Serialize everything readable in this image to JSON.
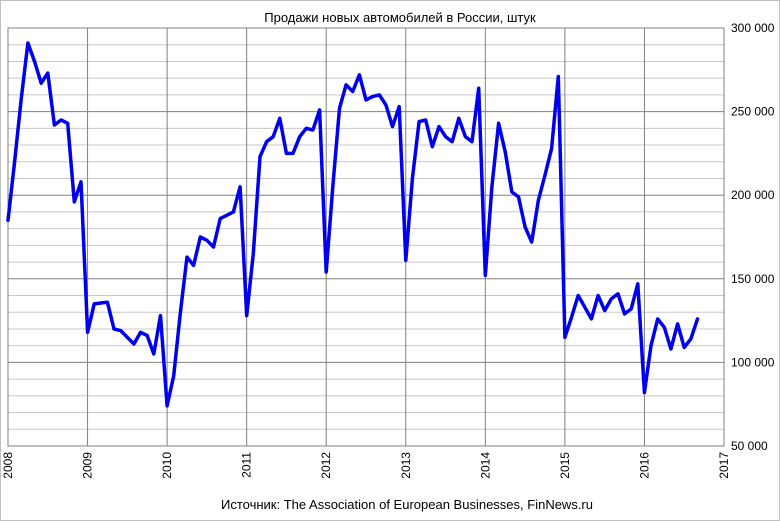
{
  "chart_data": {
    "type": "line",
    "title": "Продажи новых автомобилей в России, штук",
    "source": "Источник: The Association of European Businesses, FinNews.ru",
    "xlim": [
      2008,
      2017
    ],
    "ylim": [
      50000,
      300000
    ],
    "x_ticks": [
      "2008",
      "2009",
      "2010",
      "2011",
      "2012",
      "2013",
      "2014",
      "2015",
      "2016",
      "2017"
    ],
    "y_ticks": [
      "50 000",
      "100 000",
      "150 000",
      "200 000",
      "250 000",
      "300 000"
    ],
    "y_axis_position": "right",
    "grid": true,
    "line_color": "#0000ee",
    "series": [
      {
        "values": [
          [
            2008.0,
            185000
          ],
          [
            2008.083,
            220000
          ],
          [
            2008.167,
            258000
          ],
          [
            2008.25,
            291000
          ],
          [
            2008.333,
            280000
          ],
          [
            2008.417,
            267000
          ],
          [
            2008.5,
            273000
          ],
          [
            2008.583,
            242000
          ],
          [
            2008.667,
            245000
          ],
          [
            2008.75,
            243000
          ],
          [
            2008.833,
            196000
          ],
          [
            2008.917,
            208000
          ],
          [
            2009.0,
            118000
          ],
          [
            2009.083,
            135000
          ],
          [
            2009.167,
            135500
          ],
          [
            2009.25,
            136000
          ],
          [
            2009.333,
            120000
          ],
          [
            2009.417,
            119000
          ],
          [
            2009.5,
            115000
          ],
          [
            2009.583,
            111000
          ],
          [
            2009.667,
            118000
          ],
          [
            2009.75,
            116000
          ],
          [
            2009.833,
            105000
          ],
          [
            2009.917,
            128000
          ],
          [
            2010.0,
            74000
          ],
          [
            2010.083,
            92000
          ],
          [
            2010.167,
            130000
          ],
          [
            2010.25,
            163000
          ],
          [
            2010.333,
            158000
          ],
          [
            2010.417,
            175000
          ],
          [
            2010.5,
            173000
          ],
          [
            2010.583,
            169000
          ],
          [
            2010.667,
            186000
          ],
          [
            2010.75,
            188000
          ],
          [
            2010.833,
            190000
          ],
          [
            2010.917,
            205000
          ],
          [
            2011.0,
            128000
          ],
          [
            2011.083,
            165000
          ],
          [
            2011.167,
            223000
          ],
          [
            2011.25,
            232000
          ],
          [
            2011.333,
            235000
          ],
          [
            2011.417,
            246000
          ],
          [
            2011.5,
            225000
          ],
          [
            2011.583,
            225000
          ],
          [
            2011.667,
            235000
          ],
          [
            2011.75,
            240000
          ],
          [
            2011.833,
            239000
          ],
          [
            2011.917,
            251000
          ],
          [
            2012.0,
            154000
          ],
          [
            2012.083,
            205000
          ],
          [
            2012.167,
            252000
          ],
          [
            2012.25,
            266000
          ],
          [
            2012.333,
            262000
          ],
          [
            2012.417,
            272000
          ],
          [
            2012.5,
            257000
          ],
          [
            2012.583,
            259000
          ],
          [
            2012.667,
            260000
          ],
          [
            2012.75,
            254000
          ],
          [
            2012.833,
            241000
          ],
          [
            2012.917,
            253000
          ],
          [
            2013.0,
            161000
          ],
          [
            2013.083,
            210000
          ],
          [
            2013.167,
            244000
          ],
          [
            2013.25,
            245000
          ],
          [
            2013.333,
            229000
          ],
          [
            2013.417,
            241000
          ],
          [
            2013.5,
            235000
          ],
          [
            2013.583,
            232000
          ],
          [
            2013.667,
            246000
          ],
          [
            2013.75,
            235000
          ],
          [
            2013.833,
            232000
          ],
          [
            2013.917,
            264000
          ],
          [
            2014.0,
            152000
          ],
          [
            2014.083,
            205000
          ],
          [
            2014.167,
            243000
          ],
          [
            2014.25,
            226000
          ],
          [
            2014.333,
            202000
          ],
          [
            2014.417,
            199000
          ],
          [
            2014.5,
            181000
          ],
          [
            2014.583,
            172000
          ],
          [
            2014.667,
            197000
          ],
          [
            2014.75,
            212000
          ],
          [
            2014.833,
            228000
          ],
          [
            2014.917,
            271000
          ],
          [
            2015.0,
            115000
          ],
          [
            2015.083,
            127000
          ],
          [
            2015.167,
            140000
          ],
          [
            2015.25,
            133000
          ],
          [
            2015.333,
            126000
          ],
          [
            2015.417,
            140000
          ],
          [
            2015.5,
            131000
          ],
          [
            2015.583,
            138000
          ],
          [
            2015.667,
            141000
          ],
          [
            2015.75,
            129000
          ],
          [
            2015.833,
            132000
          ],
          [
            2015.917,
            147000
          ],
          [
            2016.0,
            82000
          ],
          [
            2016.083,
            110000
          ],
          [
            2016.167,
            126000
          ],
          [
            2016.25,
            121000
          ],
          [
            2016.333,
            108000
          ],
          [
            2016.417,
            123000
          ],
          [
            2016.5,
            109000
          ],
          [
            2016.583,
            114000
          ],
          [
            2016.667,
            126000
          ]
        ]
      }
    ]
  }
}
